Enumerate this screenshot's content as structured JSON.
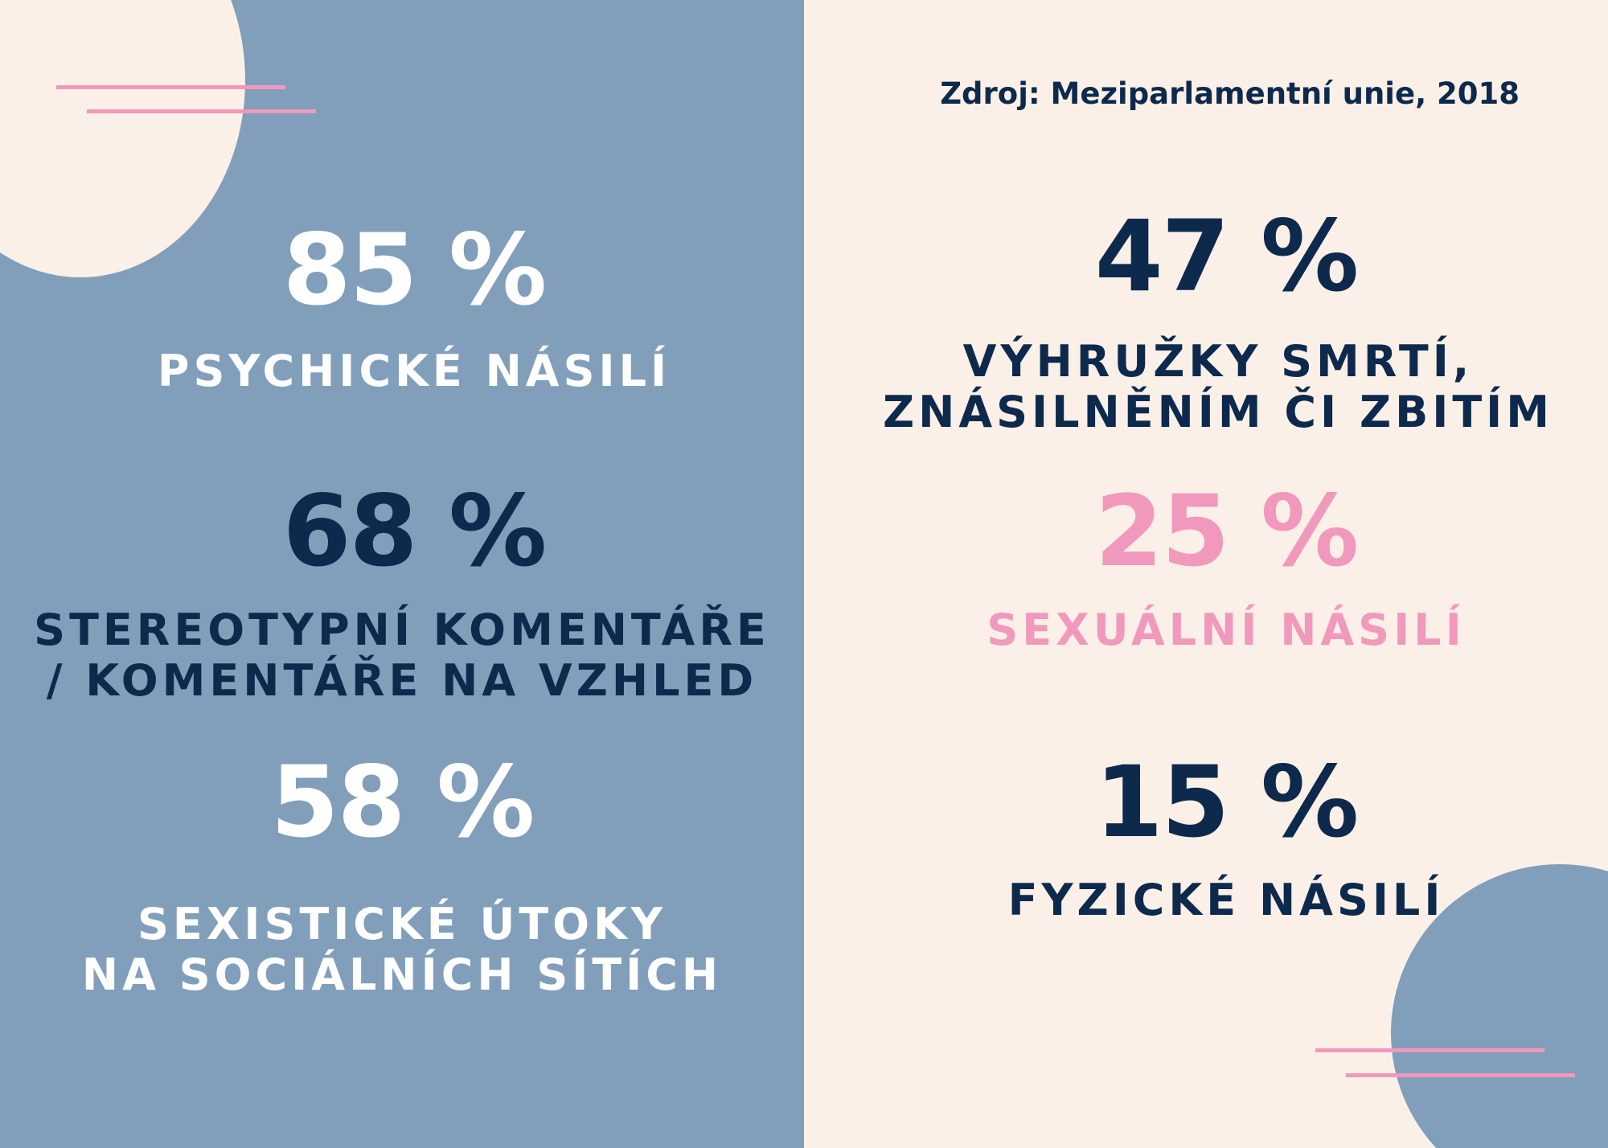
{
  "source": "Zdroj: Meziparlamentní unie, 2018",
  "left": {
    "stat1": {
      "value": "85 %",
      "label_line1": "PSYCHICKÉ NÁSILÍ",
      "label_line2": ""
    },
    "stat2": {
      "value": "68 %",
      "label_line1": "STEREOTYPNÍ KOMENTÁŘE",
      "label_line2": "/ KOMENTÁŘE NA VZHLED"
    },
    "stat3": {
      "value": "58 %",
      "label_line1": "SEXISTICKÉ ÚTOKY",
      "label_line2": "NA SOCIÁLNÍCH SÍTÍCH"
    }
  },
  "right": {
    "stat1": {
      "value": "47 %",
      "label_line1": "VÝHRUŽKY SMRTÍ,",
      "label_line2": "ZNÁSILNĚNÍM ČI ZBITÍM"
    },
    "stat2": {
      "value": "25 %",
      "label_line1": "SEXUÁLNÍ NÁSILÍ",
      "label_line2": ""
    },
    "stat3": {
      "value": "15 %",
      "label_line1": "FYZICKÉ NÁSILÍ",
      "label_line2": ""
    }
  },
  "colors": {
    "blue_panel": "#819fbb",
    "cream_panel": "#fbf0e8",
    "navy": "#0d2a4d",
    "pink": "#f199bd",
    "white": "#ffffff"
  }
}
